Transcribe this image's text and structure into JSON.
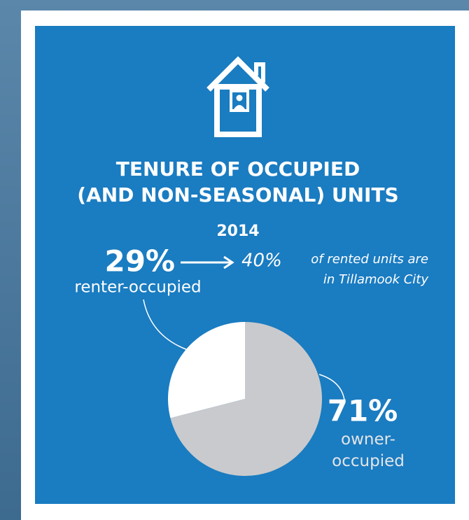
{
  "chart_data": {
    "type": "pie",
    "title": [
      "TENURE OF OCCUPIED",
      "(AND NON-SEASONAL) UNITS"
    ],
    "subtitle": "2014",
    "categories": [
      "renter-occupied",
      "owner-occupied"
    ],
    "values": [
      29,
      71
    ],
    "value_labels": [
      "29%",
      "71%"
    ],
    "colors": [
      "#ffffff",
      "#c9cacd"
    ],
    "annotation": {
      "label": "40%",
      "lines": [
        "of rented units are",
        "in Tillamook City"
      ]
    }
  }
}
